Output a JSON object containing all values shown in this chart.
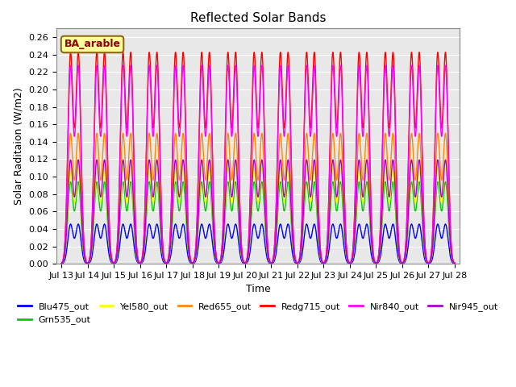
{
  "title": "Reflected Solar Bands",
  "xlabel": "Time",
  "ylabel": "Solar Raditaion (W/m2)",
  "annotation_text": "BA_arable",
  "annotation_bg": "#FFFF99",
  "annotation_border": "#8B6914",
  "ylim": [
    0.0,
    0.27
  ],
  "yticks": [
    0.0,
    0.02,
    0.04,
    0.06,
    0.08,
    0.1,
    0.12,
    0.14,
    0.16,
    0.18,
    0.2,
    0.22,
    0.24,
    0.26
  ],
  "xtick_labels": [
    "Jul 13",
    "Jul 14",
    "Jul 15",
    "Jul 16",
    "Jul 17",
    "Jul 18",
    "Jul 19",
    "Jul 20",
    "Jul 21",
    "Jul 22",
    "Jul 23",
    "Jul 24",
    "Jul 25",
    "Jul 26",
    "Jul 27",
    "Jul 28"
  ],
  "n_days": 15,
  "series": [
    {
      "label": "Blu475_out",
      "color": "#0000FF",
      "peak": 0.045,
      "lw": 1.0
    },
    {
      "label": "Grn535_out",
      "color": "#00CC00",
      "peak": 0.093,
      "lw": 1.0
    },
    {
      "label": "Yel580_out",
      "color": "#FFFF00",
      "peak": 0.108,
      "lw": 1.0
    },
    {
      "label": "Red655_out",
      "color": "#FF8800",
      "peak": 0.148,
      "lw": 1.0
    },
    {
      "label": "Redg715_out",
      "color": "#FF0000",
      "peak": 0.24,
      "lw": 1.0
    },
    {
      "label": "Nir840_out",
      "color": "#FF00FF",
      "peak": 0.225,
      "lw": 1.0
    },
    {
      "label": "Nir945_out",
      "color": "#AA00CC",
      "peak": 0.118,
      "lw": 1.0
    }
  ],
  "bg_color": "#E8E8E8"
}
